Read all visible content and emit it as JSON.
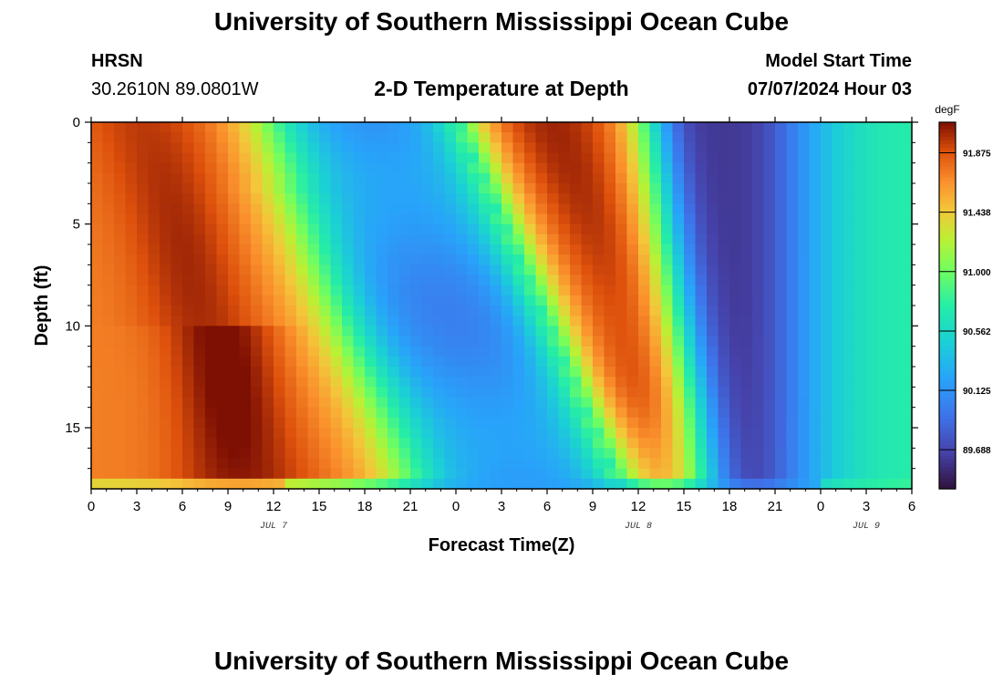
{
  "page": {
    "title": "University of Southern Mississippi Ocean Cube",
    "footer_title": "University of Southern Mississippi Ocean Cube",
    "station": "HRSN",
    "coords": "30.2610N  89.0801W",
    "subtitle": "2-D Temperature at Depth",
    "model_start_label": "Model Start Time",
    "model_start_value": "07/07/2024 Hour 03"
  },
  "chart_data": {
    "type": "heatmap",
    "xlabel": "Forecast Time(Z)",
    "ylabel": "Depth (ft)",
    "x_ticks": [
      "0",
      "3",
      "6",
      "9",
      "12",
      "15",
      "18",
      "21",
      "0",
      "3",
      "6",
      "9",
      "12",
      "15",
      "18",
      "21",
      "0",
      "3",
      "6"
    ],
    "x_range_hours": [
      0,
      54
    ],
    "date_labels": [
      {
        "label": "JUL 7",
        "hour": 12
      },
      {
        "label": "JUL 8",
        "hour": 36
      },
      {
        "label": "JUL 9",
        "hour": 51
      }
    ],
    "y_ticks": [
      0,
      5,
      10,
      15
    ],
    "y_range_ft": [
      0,
      18
    ],
    "colorbar": {
      "unit": "degF",
      "min": 89.4,
      "max": 92.1,
      "tick_values": [
        89.688,
        90.125,
        90.562,
        91.0,
        91.438,
        91.875
      ],
      "tick_labels": [
        "89.688",
        "90.125",
        "90.562",
        "91.000",
        "91.438",
        "91.875"
      ]
    },
    "grid": false
  }
}
